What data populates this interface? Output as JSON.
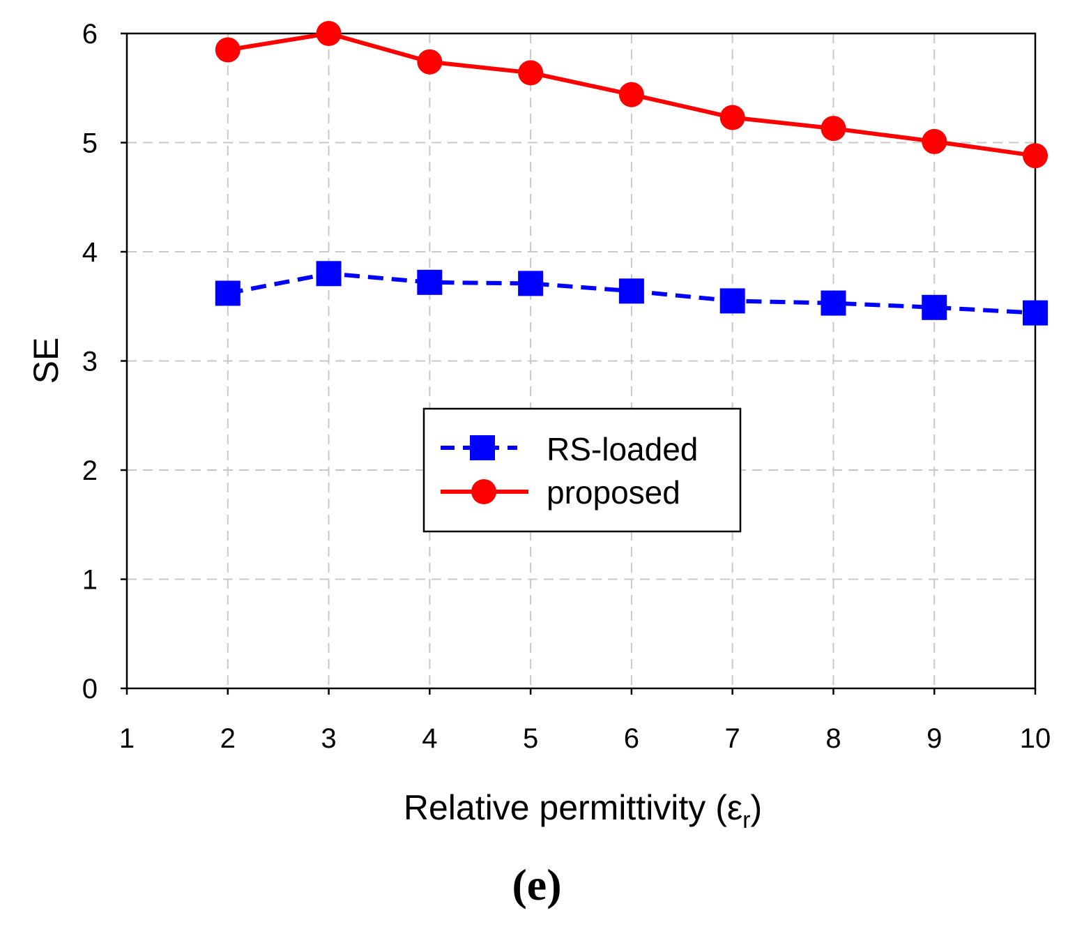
{
  "chart_data": {
    "type": "line",
    "title": "",
    "xlabel": "Relative permittivity (ε",
    "xlabel_sub": "r",
    "xlabel_close": ")",
    "ylabel": "SE",
    "xlim": [
      1,
      10
    ],
    "ylim": [
      0,
      6
    ],
    "xticks": [
      1,
      2,
      3,
      4,
      5,
      6,
      7,
      8,
      9,
      10
    ],
    "yticks": [
      0,
      1,
      2,
      3,
      4,
      5,
      6
    ],
    "grid": true,
    "legend_position": "center",
    "x": [
      2,
      3,
      4,
      5,
      6,
      7,
      8,
      9,
      10
    ],
    "series": [
      {
        "name": "RS-loaded",
        "color": "#0000ff",
        "marker": "square",
        "line": "dashed",
        "values": [
          3.62,
          3.8,
          3.72,
          3.71,
          3.64,
          3.55,
          3.53,
          3.49,
          3.44
        ]
      },
      {
        "name": "proposed",
        "color": "#ff0000",
        "marker": "circle",
        "line": "solid",
        "values": [
          5.85,
          6.0,
          5.74,
          5.64,
          5.44,
          5.23,
          5.13,
          5.01,
          4.88
        ]
      }
    ],
    "panel_label": "(e)"
  }
}
